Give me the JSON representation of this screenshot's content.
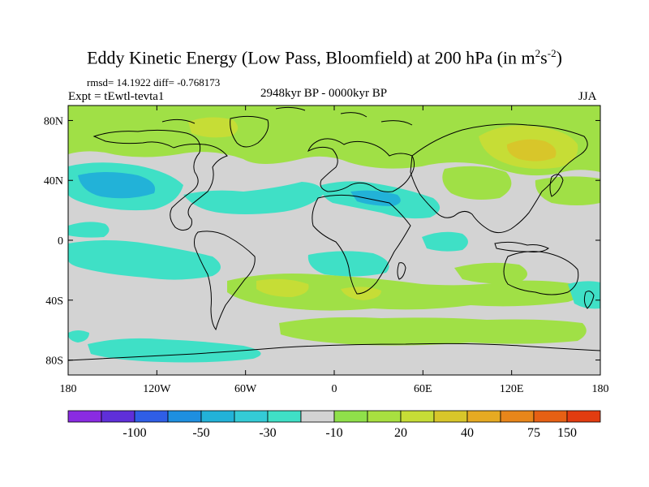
{
  "title": {
    "main": "Eddy Kinetic Energy (Low Pass, Bloomfield) at 200 hPa (in m",
    "sup1": "2",
    "mid": "s",
    "sup2": "-2",
    "end": ")"
  },
  "stats": "rmsd= 14.1922 diff= -0.768173",
  "experiment": "Expt = tEwtl-tevta1",
  "period": "2948kyr BP - 0000kyr BP",
  "season": "JJA",
  "axes": {
    "lat_labels": [
      "80N",
      "40N",
      "0",
      "40S",
      "80S"
    ],
    "lat_values": [
      80,
      40,
      0,
      -40,
      -80
    ],
    "lon_labels": [
      "180",
      "120W",
      "60W",
      "0",
      "60E",
      "120E",
      "180"
    ],
    "lon_values": [
      -180,
      -120,
      -60,
      0,
      60,
      120,
      180
    ]
  },
  "colorbar": {
    "colors": [
      "#8a2be2",
      "#5f2fd9",
      "#2f5ee6",
      "#1e8fe0",
      "#22b2d8",
      "#34cbd6",
      "#3fe0c6",
      "#d3d3d3",
      "#8fe04a",
      "#a8e040",
      "#c6dd36",
      "#d8c62a",
      "#e6aa22",
      "#e8861a",
      "#e66014",
      "#e23c10"
    ],
    "tick_labels": [
      "-100",
      "-50",
      "-30",
      "-10",
      "20",
      "40",
      "75",
      "150"
    ],
    "tick_boundaries": [
      2,
      4,
      6,
      8,
      10,
      12,
      14,
      15
    ]
  },
  "colors": {
    "neutral": "#d3d3d3",
    "green": "#a0e046",
    "cyan": "#3fe0c6",
    "lightblue": "#22b2d8",
    "yellowgreen": "#c6dd36",
    "yellow": "#d8c62a"
  }
}
